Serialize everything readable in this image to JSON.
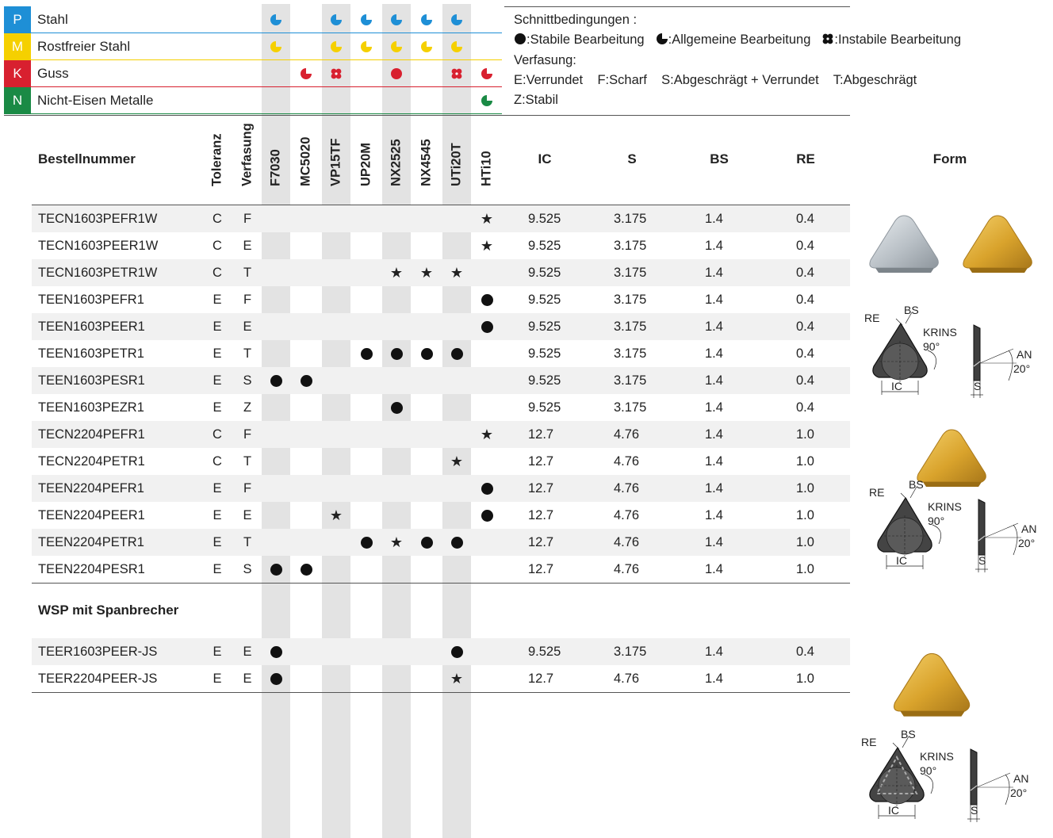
{
  "materials": [
    {
      "code": "P",
      "name": "Stahl",
      "color": "#1e8fd6"
    },
    {
      "code": "M",
      "name": "Rostfreier Stahl",
      "color": "#f5d000"
    },
    {
      "code": "K",
      "name": "Guss",
      "color": "#d8202f"
    },
    {
      "code": "N",
      "name": "Nicht-Eisen Metalle",
      "color": "#1a8a45"
    }
  ],
  "material_marks": {
    "P": {
      "cols": [
        0,
        2,
        3,
        4,
        5,
        6
      ],
      "type": "allgemein"
    },
    "M": {
      "cols": [
        0,
        2,
        3,
        4,
        5,
        6
      ],
      "type": "allgemein"
    },
    "K": [
      {
        "col": 1,
        "type": "allgemein"
      },
      {
        "col": 2,
        "type": "instabil"
      },
      {
        "col": 4,
        "type": "stabil"
      },
      {
        "col": 6,
        "type": "instabil"
      },
      {
        "col": 7,
        "type": "allgemein"
      }
    ],
    "N": [
      {
        "col": 7,
        "type": "allgemein"
      }
    ]
  },
  "conditions": {
    "title": "Schnittbedingungen :",
    "stable": ":Stabile Bearbeitung",
    "general": ":Allgemeine Bearbeitung",
    "unstable": ":Instabile Bearbeitung",
    "chamfer_title": "Verfasung:",
    "chamfer_line": "E:Verrundet    F:Scharf    S:Abgeschrägt + Verrundet    T:Abgeschrägt",
    "chamfer_z": "Z:Stabil"
  },
  "headers": {
    "order": "Bestellnummer",
    "tolerance": "Toleranz",
    "chamfer": "Verfasung",
    "grades": [
      "F7030",
      "MC5020",
      "VP15TF",
      "UP20M",
      "NX2525",
      "NX4545",
      "UTi20T",
      "HTi10"
    ],
    "ic": "IC",
    "s": "S",
    "bs": "BS",
    "re": "RE",
    "form": "Form"
  },
  "rows": [
    {
      "order": "TECN1603PEFR1W",
      "tol": "C",
      "ch": "F",
      "marks": [
        "",
        "",
        "",
        "",
        "",
        "",
        "",
        "star"
      ],
      "ic": "9.525",
      "s": "3.175",
      "bs": "1.4",
      "re": "0.4"
    },
    {
      "order": "TECN1603PEER1W",
      "tol": "C",
      "ch": "E",
      "marks": [
        "",
        "",
        "",
        "",
        "",
        "",
        "",
        "star"
      ],
      "ic": "9.525",
      "s": "3.175",
      "bs": "1.4",
      "re": "0.4"
    },
    {
      "order": "TECN1603PETR1W",
      "tol": "C",
      "ch": "T",
      "marks": [
        "",
        "",
        "",
        "",
        "star",
        "star",
        "star",
        ""
      ],
      "ic": "9.525",
      "s": "3.175",
      "bs": "1.4",
      "re": "0.4"
    },
    {
      "order": "TEEN1603PEFR1",
      "tol": "E",
      "ch": "F",
      "marks": [
        "",
        "",
        "",
        "",
        "",
        "",
        "",
        "dot"
      ],
      "ic": "9.525",
      "s": "3.175",
      "bs": "1.4",
      "re": "0.4"
    },
    {
      "order": "TEEN1603PEER1",
      "tol": "E",
      "ch": "E",
      "marks": [
        "",
        "",
        "",
        "",
        "",
        "",
        "",
        "dot"
      ],
      "ic": "9.525",
      "s": "3.175",
      "bs": "1.4",
      "re": "0.4"
    },
    {
      "order": "TEEN1603PETR1",
      "tol": "E",
      "ch": "T",
      "marks": [
        "",
        "",
        "",
        "dot",
        "dot",
        "dot",
        "dot",
        ""
      ],
      "ic": "9.525",
      "s": "3.175",
      "bs": "1.4",
      "re": "0.4"
    },
    {
      "order": "TEEN1603PESR1",
      "tol": "E",
      "ch": "S",
      "marks": [
        "dot",
        "dot",
        "",
        "",
        "",
        "",
        "",
        ""
      ],
      "ic": "9.525",
      "s": "3.175",
      "bs": "1.4",
      "re": "0.4"
    },
    {
      "order": "TEEN1603PEZR1",
      "tol": "E",
      "ch": "Z",
      "marks": [
        "",
        "",
        "",
        "",
        "dot",
        "",
        "",
        ""
      ],
      "ic": "9.525",
      "s": "3.175",
      "bs": "1.4",
      "re": "0.4"
    },
    {
      "order": "TECN2204PEFR1",
      "tol": "C",
      "ch": "F",
      "marks": [
        "",
        "",
        "",
        "",
        "",
        "",
        "",
        "star"
      ],
      "ic": "12.7",
      "s": "4.76",
      "bs": "1.4",
      "re": "1.0"
    },
    {
      "order": "TECN2204PETR1",
      "tol": "C",
      "ch": "T",
      "marks": [
        "",
        "",
        "",
        "",
        "",
        "",
        "star",
        ""
      ],
      "ic": "12.7",
      "s": "4.76",
      "bs": "1.4",
      "re": "1.0"
    },
    {
      "order": "TEEN2204PEFR1",
      "tol": "E",
      "ch": "F",
      "marks": [
        "",
        "",
        "",
        "",
        "",
        "",
        "",
        "dot"
      ],
      "ic": "12.7",
      "s": "4.76",
      "bs": "1.4",
      "re": "1.0"
    },
    {
      "order": "TEEN2204PEER1",
      "tol": "E",
      "ch": "E",
      "marks": [
        "",
        "",
        "star",
        "",
        "",
        "",
        "",
        "dot"
      ],
      "ic": "12.7",
      "s": "4.76",
      "bs": "1.4",
      "re": "1.0"
    },
    {
      "order": "TEEN2204PETR1",
      "tol": "E",
      "ch": "T",
      "marks": [
        "",
        "",
        "",
        "dot",
        "star",
        "dot",
        "dot",
        ""
      ],
      "ic": "12.7",
      "s": "4.76",
      "bs": "1.4",
      "re": "1.0"
    },
    {
      "order": "TEEN2204PESR1",
      "tol": "E",
      "ch": "S",
      "marks": [
        "dot",
        "dot",
        "",
        "",
        "",
        "",
        "",
        ""
      ],
      "ic": "12.7",
      "s": "4.76",
      "bs": "1.4",
      "re": "1.0"
    }
  ],
  "section2_title": "WSP mit Spanbrecher",
  "rows2": [
    {
      "order": "TEER1603PEER-JS",
      "tol": "E",
      "ch": "E",
      "marks": [
        "dot",
        "",
        "",
        "",
        "",
        "",
        "dot",
        ""
      ],
      "ic": "9.525",
      "s": "3.175",
      "bs": "1.4",
      "re": "0.4"
    },
    {
      "order": "TEER2204PEER-JS",
      "tol": "E",
      "ch": "E",
      "marks": [
        "dot",
        "",
        "",
        "",
        "",
        "",
        "star",
        ""
      ],
      "ic": "12.7",
      "s": "4.76",
      "bs": "1.4",
      "re": "1.0"
    }
  ],
  "diagram_labels": {
    "re": "RE",
    "bs": "BS",
    "krins": "KRINS",
    "angle90": "90°",
    "an": "AN",
    "angle20": "20°",
    "ic": "IC",
    "s": "S"
  }
}
